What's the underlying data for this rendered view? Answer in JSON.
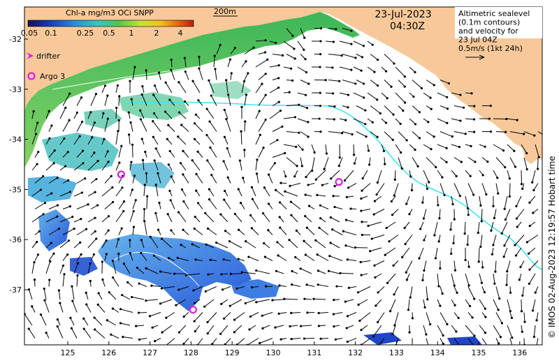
{
  "colorbar": {
    "title": "Chl-a mg/m3 OCi SNPP",
    "ticks": [
      "0.05",
      "0.1",
      "0.25",
      "0.5",
      "1",
      "2",
      "4"
    ]
  },
  "scale_bar_label": "200m",
  "datetime": {
    "date": "23-Jul-2023",
    "time": "04:30Z"
  },
  "legend": {
    "drifter": "drifter",
    "argo": "Argo 3"
  },
  "info_box": {
    "lines": [
      "Altimetric sealevel",
      "(0.1m contours)",
      "and velocity for",
      "23 Jul 04Z",
      "0.5m/s (1kt 24h)"
    ]
  },
  "credit": "© IMOS 02-Aug-2023 12:19:57 Hobart time",
  "axes": {
    "lon_ticks": [
      "125",
      "126",
      "127",
      "128",
      "129",
      "130",
      "131",
      "132",
      "133",
      "134",
      "135",
      "136"
    ],
    "lat_ticks": [
      "-32",
      "-33",
      "-34",
      "-35",
      "-36",
      "-37"
    ]
  },
  "argo_floats": [
    {
      "lon": 126.3,
      "lat": -34.7
    },
    {
      "lon": 131.6,
      "lat": -34.85
    },
    {
      "lon": 128.05,
      "lat": -37.4
    }
  ],
  "colors": {
    "land": "#f7c99a",
    "contour": "#3ee6ee",
    "argo": "#e01ee0",
    "drifter": "#e01ee0"
  }
}
